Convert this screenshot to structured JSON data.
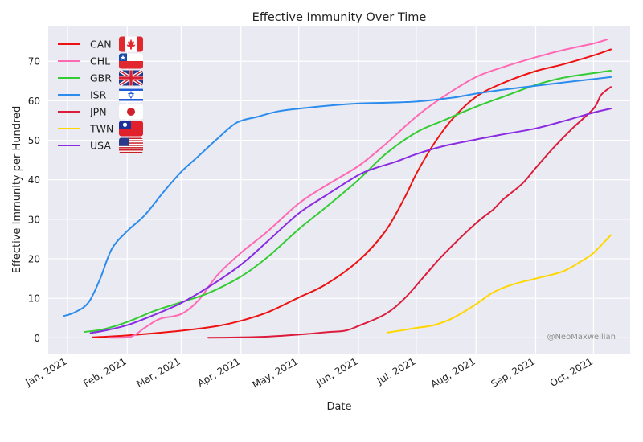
{
  "chart_data": {
    "type": "line",
    "title": "Effective Immunity Over Time",
    "xlabel": "Date",
    "ylabel": "Effective Immunity per Hundred",
    "x_tick_labels": [
      "Jan, 2021",
      "Feb, 2021",
      "Mar, 2021",
      "Apr, 2021",
      "May, 2021",
      "Jun, 2021",
      "Jul, 2021",
      "Aug, 2021",
      "Sep, 2021",
      "Oct, 2021"
    ],
    "x_ticks": [
      "2021-01-01",
      "2021-02-01",
      "2021-03-01",
      "2021-04-01",
      "2021-05-01",
      "2021-06-01",
      "2021-07-01",
      "2021-08-01",
      "2021-09-01",
      "2021-10-01"
    ],
    "xlim": [
      "2020-12-22",
      "2021-10-20"
    ],
    "y_ticks": [
      0,
      10,
      20,
      30,
      40,
      50,
      60,
      70
    ],
    "ylim": [
      -4,
      79
    ],
    "grid": true,
    "legend_position": "top-left",
    "watermark": "@NeoMaxwellian",
    "series": [
      {
        "name": "CAN",
        "flag": "flag-canada",
        "color": "#ee1111",
        "points": [
          [
            "2021-01-14",
            0.1
          ],
          [
            "2021-02-01",
            0.6
          ],
          [
            "2021-03-01",
            1.8
          ],
          [
            "2021-03-20",
            3
          ],
          [
            "2021-04-01",
            4.3
          ],
          [
            "2021-04-15",
            6.5
          ],
          [
            "2021-05-01",
            10.2
          ],
          [
            "2021-05-15",
            13.5
          ],
          [
            "2021-06-01",
            19.5
          ],
          [
            "2021-06-15",
            27
          ],
          [
            "2021-06-25",
            35.5
          ],
          [
            "2021-07-01",
            41.5
          ],
          [
            "2021-07-10",
            49
          ],
          [
            "2021-07-20",
            55.5
          ],
          [
            "2021-08-01",
            61
          ],
          [
            "2021-08-15",
            64.5
          ],
          [
            "2021-09-01",
            67.5
          ],
          [
            "2021-09-15",
            69.2
          ],
          [
            "2021-10-01",
            71.5
          ],
          [
            "2021-10-10",
            73
          ]
        ]
      },
      {
        "name": "CHL",
        "flag": "flag-chile",
        "color": "#ff69b4",
        "points": [
          [
            "2021-01-23",
            0
          ],
          [
            "2021-02-03",
            0.3
          ],
          [
            "2021-02-10",
            2.5
          ],
          [
            "2021-02-18",
            4.8
          ],
          [
            "2021-03-01",
            6
          ],
          [
            "2021-03-10",
            9.5
          ],
          [
            "2021-03-20",
            16
          ],
          [
            "2021-04-01",
            21.5
          ],
          [
            "2021-04-15",
            27
          ],
          [
            "2021-05-01",
            34
          ],
          [
            "2021-05-15",
            38.5
          ],
          [
            "2021-06-01",
            43.5
          ],
          [
            "2021-06-15",
            49
          ],
          [
            "2021-07-01",
            56
          ],
          [
            "2021-07-15",
            61
          ],
          [
            "2021-08-01",
            66
          ],
          [
            "2021-08-15",
            68.5
          ],
          [
            "2021-09-01",
            71
          ],
          [
            "2021-09-15",
            72.8
          ],
          [
            "2021-10-01",
            74.5
          ],
          [
            "2021-10-08",
            75.5
          ]
        ]
      },
      {
        "name": "GBR",
        "flag": "flag-uk",
        "color": "#33cc33",
        "points": [
          [
            "2021-01-10",
            1.5
          ],
          [
            "2021-01-20",
            2.2
          ],
          [
            "2021-02-01",
            4
          ],
          [
            "2021-02-15",
            6.8
          ],
          [
            "2021-03-01",
            9
          ],
          [
            "2021-03-15",
            11.3
          ],
          [
            "2021-04-01",
            15.5
          ],
          [
            "2021-04-15",
            20.5
          ],
          [
            "2021-05-01",
            27.5
          ],
          [
            "2021-05-15",
            33
          ],
          [
            "2021-06-01",
            40
          ],
          [
            "2021-06-15",
            46.5
          ],
          [
            "2021-07-01",
            52
          ],
          [
            "2021-07-15",
            55
          ],
          [
            "2021-08-01",
            58.5
          ],
          [
            "2021-08-15",
            61
          ],
          [
            "2021-09-01",
            64
          ],
          [
            "2021-09-15",
            65.8
          ],
          [
            "2021-10-01",
            67
          ],
          [
            "2021-10-10",
            67.6
          ]
        ]
      },
      {
        "name": "ISR",
        "flag": "flag-israel",
        "color": "#2b8cee",
        "points": [
          [
            "2020-12-30",
            5.5
          ],
          [
            "2021-01-05",
            6.5
          ],
          [
            "2021-01-12",
            9
          ],
          [
            "2021-01-18",
            15
          ],
          [
            "2021-01-24",
            22.5
          ],
          [
            "2021-02-01",
            27
          ],
          [
            "2021-02-10",
            31
          ],
          [
            "2021-02-20",
            37
          ],
          [
            "2021-03-01",
            42
          ],
          [
            "2021-03-10",
            46
          ],
          [
            "2021-03-20",
            50.5
          ],
          [
            "2021-03-30",
            54.5
          ],
          [
            "2021-04-10",
            56
          ],
          [
            "2021-04-20",
            57.3
          ],
          [
            "2021-05-01",
            58
          ],
          [
            "2021-05-20",
            58.9
          ],
          [
            "2021-06-01",
            59.3
          ],
          [
            "2021-06-15",
            59.5
          ],
          [
            "2021-07-01",
            59.8
          ],
          [
            "2021-07-20",
            60.8
          ],
          [
            "2021-08-01",
            61.8
          ],
          [
            "2021-08-15",
            62.8
          ],
          [
            "2021-09-01",
            63.8
          ],
          [
            "2021-09-15",
            64.6
          ],
          [
            "2021-10-01",
            65.5
          ],
          [
            "2021-10-10",
            66
          ]
        ]
      },
      {
        "name": "JPN",
        "flag": "flag-japan",
        "color": "#dc1c3c",
        "points": [
          [
            "2021-03-15",
            0
          ],
          [
            "2021-04-01",
            0.1
          ],
          [
            "2021-04-15",
            0.3
          ],
          [
            "2021-05-01",
            0.8
          ],
          [
            "2021-05-15",
            1.4
          ],
          [
            "2021-05-25",
            1.8
          ],
          [
            "2021-06-01",
            3
          ],
          [
            "2021-06-15",
            6
          ],
          [
            "2021-06-25",
            10
          ],
          [
            "2021-07-05",
            15.5
          ],
          [
            "2021-07-15",
            21
          ],
          [
            "2021-08-01",
            29
          ],
          [
            "2021-08-10",
            32.5
          ],
          [
            "2021-08-15",
            35
          ],
          [
            "2021-08-25",
            39
          ],
          [
            "2021-09-01",
            43
          ],
          [
            "2021-09-10",
            48
          ],
          [
            "2021-09-20",
            53
          ],
          [
            "2021-10-01",
            58
          ],
          [
            "2021-10-05",
            61.5
          ],
          [
            "2021-10-10",
            63.5
          ]
        ]
      },
      {
        "name": "TWN",
        "flag": "flag-taiwan",
        "color": "#ffd700",
        "points": [
          [
            "2021-06-16",
            1.3
          ],
          [
            "2021-06-25",
            2
          ],
          [
            "2021-07-01",
            2.5
          ],
          [
            "2021-07-10",
            3.2
          ],
          [
            "2021-07-20",
            5
          ],
          [
            "2021-08-01",
            8.5
          ],
          [
            "2021-08-10",
            11.5
          ],
          [
            "2021-08-20",
            13.5
          ],
          [
            "2021-09-01",
            15
          ],
          [
            "2021-09-15",
            16.8
          ],
          [
            "2021-09-25",
            19.5
          ],
          [
            "2021-10-01",
            21.5
          ],
          [
            "2021-10-10",
            26
          ]
        ]
      },
      {
        "name": "USA",
        "flag": "flag-usa",
        "color": "#8a2be2",
        "points": [
          [
            "2021-01-13",
            1.2
          ],
          [
            "2021-01-20",
            1.8
          ],
          [
            "2021-02-01",
            3.2
          ],
          [
            "2021-02-15",
            5.8
          ],
          [
            "2021-03-01",
            8.8
          ],
          [
            "2021-03-15",
            12.8
          ],
          [
            "2021-04-01",
            18.5
          ],
          [
            "2021-04-15",
            24.5
          ],
          [
            "2021-05-01",
            31.5
          ],
          [
            "2021-05-15",
            36
          ],
          [
            "2021-06-01",
            41.2
          ],
          [
            "2021-06-10",
            43
          ],
          [
            "2021-06-20",
            44.5
          ],
          [
            "2021-07-01",
            46.5
          ],
          [
            "2021-07-15",
            48.5
          ],
          [
            "2021-08-01",
            50.2
          ],
          [
            "2021-08-15",
            51.5
          ],
          [
            "2021-09-01",
            53
          ],
          [
            "2021-09-15",
            54.8
          ],
          [
            "2021-10-01",
            57
          ],
          [
            "2021-10-10",
            58
          ]
        ]
      }
    ]
  }
}
